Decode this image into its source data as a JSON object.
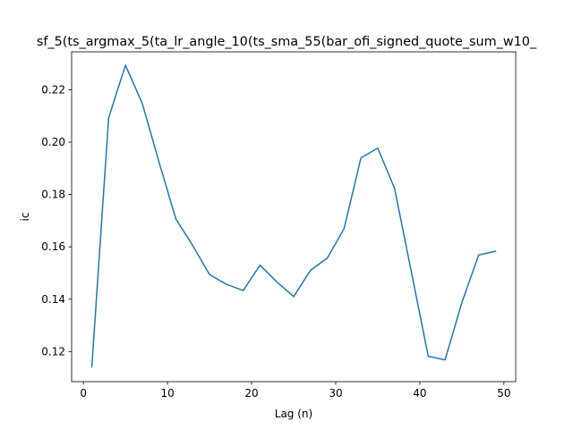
{
  "chart_data": {
    "type": "line",
    "title": "sf_5(ts_argmax_5(ta_lr_angle_10(ts_sma_55(bar_ofi_signed_quote_sum_w10_",
    "xlabel": "Lag (n)",
    "ylabel": "ic",
    "xlim": [
      -1.4,
      51.4
    ],
    "ylim": [
      0.1085,
      0.2345
    ],
    "xticks": [
      0,
      10,
      20,
      30,
      40,
      50
    ],
    "yticks": [
      0.12,
      0.14,
      0.16,
      0.18,
      0.2,
      0.22
    ],
    "xtick_labels": [
      "0",
      "10",
      "20",
      "30",
      "40",
      "50"
    ],
    "ytick_labels": [
      "0.12",
      "0.14",
      "0.16",
      "0.18",
      "0.20",
      "0.22"
    ],
    "grid": false,
    "series": [
      {
        "color": "#1f77b4",
        "x": [
          1,
          3,
          5,
          7,
          9,
          11,
          13,
          15,
          17,
          19,
          21,
          23,
          25,
          27,
          29,
          31,
          33,
          35,
          37,
          39,
          41,
          43,
          45,
          47,
          49
        ],
        "y": [
          0.1141,
          0.2092,
          0.2294,
          0.2148,
          0.1923,
          0.1706,
          0.1605,
          0.1494,
          0.1457,
          0.1433,
          0.153,
          0.1466,
          0.141,
          0.151,
          0.1557,
          0.167,
          0.194,
          0.1977,
          0.1823,
          0.1503,
          0.1182,
          0.1168,
          0.1387,
          0.1569,
          0.1583
        ]
      }
    ]
  }
}
